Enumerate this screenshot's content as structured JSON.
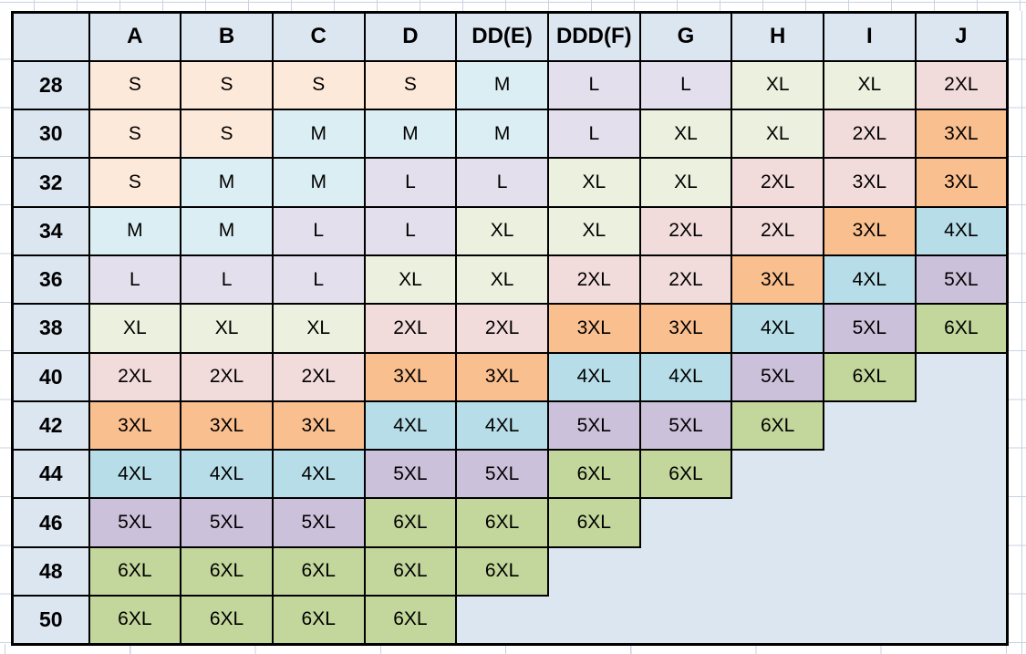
{
  "chart_data": {
    "type": "table",
    "corner_label": "",
    "columns": [
      "A",
      "B",
      "C",
      "D",
      "DD(E)",
      "DDD(F)",
      "G",
      "H",
      "I",
      "J"
    ],
    "row_labels": [
      "28",
      "30",
      "32",
      "34",
      "36",
      "38",
      "40",
      "42",
      "44",
      "46",
      "48",
      "50"
    ],
    "rows": [
      [
        "S",
        "S",
        "S",
        "S",
        "M",
        "L",
        "L",
        "XL",
        "XL",
        "2XL"
      ],
      [
        "S",
        "S",
        "M",
        "M",
        "M",
        "L",
        "XL",
        "XL",
        "2XL",
        "3XL"
      ],
      [
        "S",
        "M",
        "M",
        "L",
        "L",
        "XL",
        "XL",
        "2XL",
        "3XL",
        "3XL"
      ],
      [
        "M",
        "M",
        "L",
        "L",
        "XL",
        "XL",
        "2XL",
        "2XL",
        "3XL",
        "4XL"
      ],
      [
        "L",
        "L",
        "L",
        "XL",
        "XL",
        "2XL",
        "2XL",
        "3XL",
        "4XL",
        "5XL"
      ],
      [
        "XL",
        "XL",
        "XL",
        "2XL",
        "2XL",
        "3XL",
        "3XL",
        "4XL",
        "5XL",
        "6XL"
      ],
      [
        "2XL",
        "2XL",
        "2XL",
        "3XL",
        "3XL",
        "4XL",
        "4XL",
        "5XL",
        "6XL",
        ""
      ],
      [
        "3XL",
        "3XL",
        "3XL",
        "4XL",
        "4XL",
        "5XL",
        "5XL",
        "6XL",
        "",
        ""
      ],
      [
        "4XL",
        "4XL",
        "4XL",
        "5XL",
        "5XL",
        "6XL",
        "6XL",
        "",
        "",
        ""
      ],
      [
        "5XL",
        "5XL",
        "5XL",
        "6XL",
        "6XL",
        "6XL",
        "",
        "",
        "",
        ""
      ],
      [
        "6XL",
        "6XL",
        "6XL",
        "6XL",
        "6XL",
        "",
        "",
        "",
        "",
        ""
      ],
      [
        "6XL",
        "6XL",
        "6XL",
        "6XL",
        "",
        "",
        "",
        "",
        "",
        ""
      ]
    ],
    "cell_colors": {
      "S": "#FDE9D9",
      "M": "#DBEEF3",
      "L": "#E4DFEC",
      "XL": "#EBF1DE",
      "2XL": "#F2DCDB",
      "3XL": "#FABF8F",
      "4XL": "#B7DEE8",
      "5XL": "#CCC1DA",
      "6XL": "#C3D69B"
    },
    "cell_color_overrides": [
      {
        "row_label": "32",
        "column": "I",
        "color": "#F2DCDB"
      }
    ]
  },
  "style": {
    "header_bg": "#DCE6F1",
    "empty_bg": "#DCE6F1",
    "border_color": "#000000",
    "gridline_color": "#C8D2E2",
    "text_color": "#000000"
  }
}
